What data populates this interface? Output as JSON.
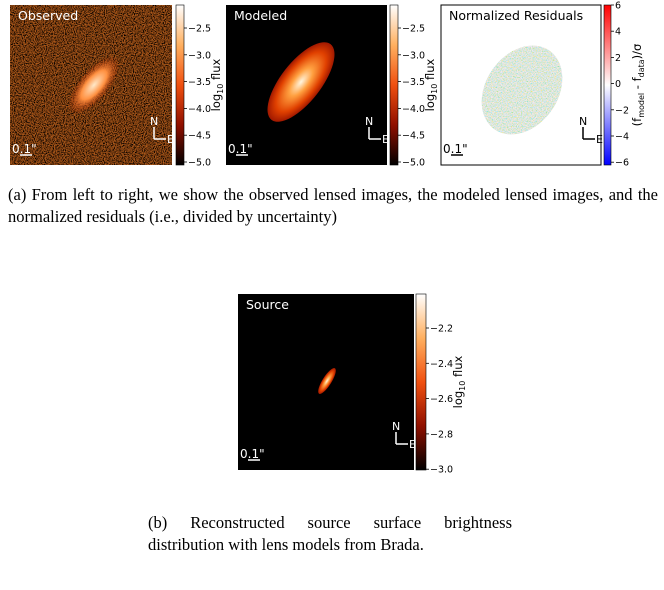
{
  "figure_a": {
    "panels": [
      {
        "title": "Observed",
        "scale": "0.1\"",
        "north": "N",
        "east": "E",
        "colorbar": {
          "ticks": [
            "−2.5",
            "−3.0",
            "−3.5",
            "−4.0",
            "−4.5",
            "−5.0"
          ],
          "label": {
            "main": "log",
            "sub": "10",
            "tail": " flux"
          }
        }
      },
      {
        "title": "Modeled",
        "scale": "0.1\"",
        "north": "N",
        "east": "E",
        "colorbar": {
          "ticks": [
            "−2.5",
            "−3.0",
            "−3.5",
            "−4.0",
            "−4.5",
            "−5.0"
          ],
          "label": {
            "main": "log",
            "sub": "10",
            "tail": " flux"
          }
        }
      },
      {
        "title": "Normalized Residuals",
        "scale": "0.1\"",
        "north": "N",
        "east": "E",
        "colorbar": {
          "ticks": [
            "6",
            "4",
            "2",
            "0",
            "−2",
            "−4",
            "−6"
          ],
          "label": {
            "main": "(f",
            "sub": "model",
            "tail": " - f",
            "sub2": "data",
            "tail2": ")/σ"
          }
        }
      }
    ]
  },
  "caption_a": "(a) From left to right, we show the observed lensed images, the modeled lensed images, and the normalized residuals (i.e., divided by uncertainty)",
  "figure_b": {
    "panel": {
      "title": "Source",
      "scale": "0.1\"",
      "north": "N",
      "east": "E",
      "colorbar": {
        "ticks": [
          "−2.2",
          "−2.4",
          "−2.6",
          "−2.8",
          "−3.0"
        ],
        "label": {
          "main": "log",
          "sub": "10",
          "tail": " flux"
        }
      }
    }
  },
  "caption_b": "(b) Reconstructed source surface brightness distribution with lens models from Brada."
}
